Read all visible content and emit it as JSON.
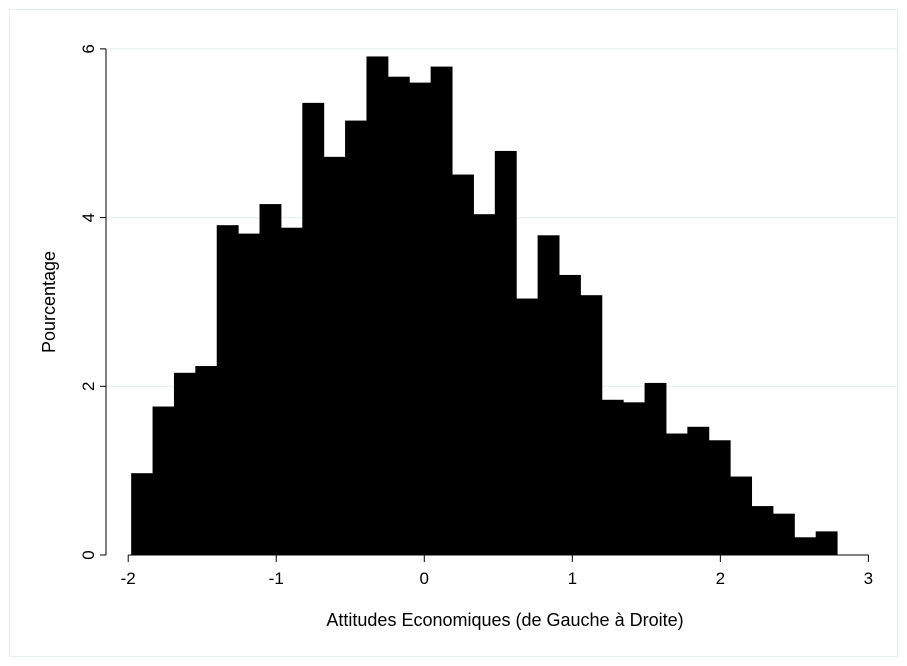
{
  "chart_data": {
    "type": "bar",
    "title": "",
    "xlabel": "Attitudes Economiques (de Gauche à Droite)",
    "ylabel": "Pourcentage",
    "xlim": [
      -2.15,
      3.2
    ],
    "ylim": [
      0,
      6.2
    ],
    "xticks": [
      -2,
      -1,
      0,
      1,
      2,
      3
    ],
    "xtick_labels": [
      "-2",
      "-1",
      "0",
      "1",
      "2",
      "3"
    ],
    "yticks": [
      0,
      2,
      4,
      6
    ],
    "ytick_labels": [
      "0",
      "2",
      "4",
      "6"
    ],
    "grid": "horizontal",
    "bin_start": -1.98,
    "bin_width": 0.1445,
    "values": [
      0.97,
      1.76,
      2.16,
      2.24,
      3.91,
      3.81,
      4.16,
      3.88,
      5.36,
      4.72,
      5.15,
      5.91,
      5.67,
      5.6,
      5.79,
      4.51,
      4.04,
      4.79,
      3.04,
      3.79,
      3.32,
      3.08,
      1.84,
      1.81,
      2.04,
      1.44,
      1.52,
      1.36,
      0.93,
      0.58,
      0.49,
      0.21,
      0.28
    ],
    "colors": {
      "bar": "#000000",
      "grid": "#e6edf1",
      "background": "#ffffff"
    }
  }
}
